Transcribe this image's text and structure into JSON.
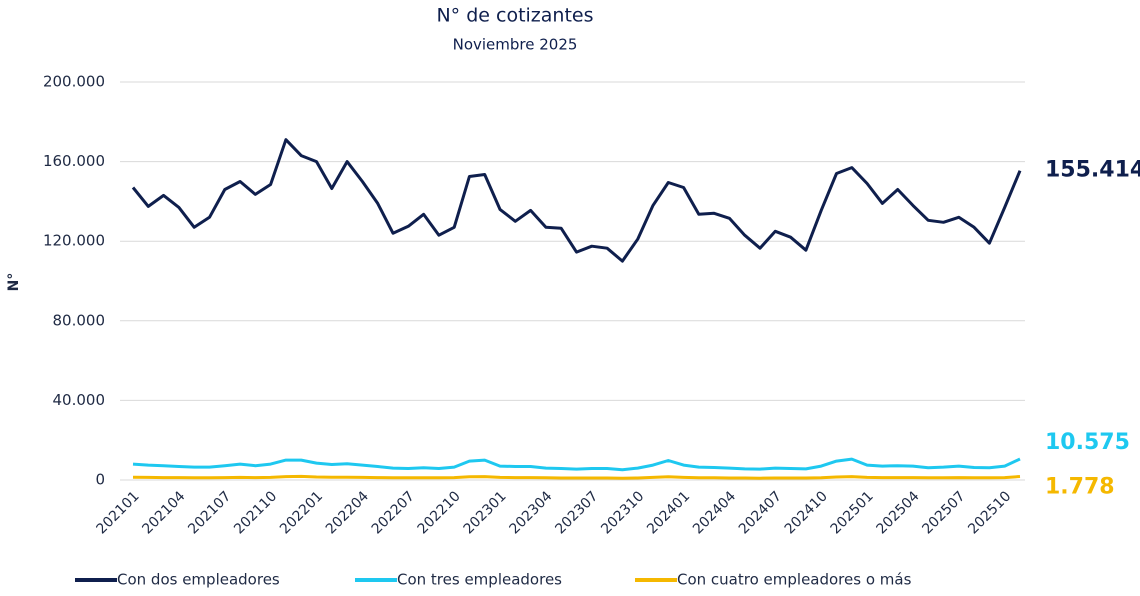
{
  "chart_data": {
    "type": "line",
    "title": "N° de cotizantes",
    "subtitle": "Noviembre 2025",
    "y_label": "N°",
    "categories": [
      "202101",
      null,
      null,
      "202104",
      null,
      null,
      "202107",
      null,
      null,
      "202110",
      null,
      null,
      "202201",
      null,
      null,
      "202204",
      null,
      null,
      "202207",
      null,
      null,
      "202210",
      null,
      null,
      "202301",
      null,
      null,
      "202304",
      null,
      null,
      "202307",
      null,
      null,
      "202310",
      null,
      null,
      "202401",
      null,
      null,
      "202404",
      null,
      null,
      "202407",
      null,
      null,
      "202410",
      null,
      null,
      "202501",
      null,
      null,
      "202504",
      null,
      null,
      "202507",
      null,
      null,
      "202510",
      null
    ],
    "series": [
      {
        "name": "Con dos empleadores",
        "color": "#0f1f4d",
        "end_label": "155.414",
        "values": [
          147000,
          137500,
          143000,
          137000,
          127000,
          132000,
          146000,
          150000,
          143500,
          148500,
          171000,
          163000,
          160000,
          146500,
          160000,
          150000,
          139000,
          124000,
          127500,
          133500,
          123000,
          127000,
          152500,
          153500,
          136000,
          130000,
          135500,
          127000,
          126500,
          114500,
          117500,
          116500,
          110000,
          121000,
          138000,
          149500,
          147000,
          133500,
          134000,
          131500,
          123000,
          116500,
          125000,
          122000,
          115500,
          135500,
          154000,
          157000,
          149000,
          139000,
          146000,
          138000,
          130500,
          129500,
          132000,
          127000,
          119000,
          137000,
          155414
        ]
      },
      {
        "name": "Con tres empleadores",
        "color": "#1ec8f0",
        "end_label": "10.575",
        "values": [
          8000,
          7500,
          7200,
          6800,
          6500,
          6500,
          7200,
          8000,
          7200,
          8000,
          10000,
          10000,
          8500,
          7800,
          8200,
          7500,
          6800,
          6000,
          5800,
          6200,
          5800,
          6500,
          9500,
          10000,
          7000,
          6800,
          6800,
          6000,
          5800,
          5500,
          5800,
          5800,
          5200,
          6000,
          7500,
          9800,
          7500,
          6500,
          6300,
          6000,
          5600,
          5500,
          6000,
          5800,
          5600,
          7000,
          9500,
          10500,
          7500,
          7000,
          7200,
          7000,
          6200,
          6500,
          7000,
          6300,
          6200,
          7000,
          10575
        ]
      },
      {
        "name": "Con cuatro empleadores o más",
        "color": "#f5b800",
        "end_label": "1.778",
        "values": [
          1400,
          1300,
          1200,
          1200,
          1100,
          1100,
          1200,
          1300,
          1200,
          1300,
          1700,
          1800,
          1500,
          1400,
          1400,
          1300,
          1200,
          1100,
          1100,
          1100,
          1100,
          1200,
          1600,
          1700,
          1300,
          1200,
          1200,
          1100,
          1000,
          1000,
          1000,
          1000,
          900,
          1000,
          1300,
          1600,
          1300,
          1100,
          1100,
          1000,
          1000,
          900,
          1000,
          1000,
          1000,
          1100,
          1500,
          1700,
          1300,
          1200,
          1200,
          1200,
          1100,
          1100,
          1200,
          1100,
          1100,
          1200,
          1778
        ]
      }
    ],
    "ylim": [
      0,
      200000
    ],
    "yticks": [
      0,
      {
        "value": 40000,
        "label": "40.000"
      },
      {
        "value": 80000,
        "label": "80.000"
      },
      {
        "value": 120000,
        "label": "120.000"
      },
      {
        "value": 160000,
        "label": "160.000"
      },
      {
        "value": 200000,
        "label": "200.000"
      }
    ],
    "grid": true,
    "legend": "bottom"
  }
}
